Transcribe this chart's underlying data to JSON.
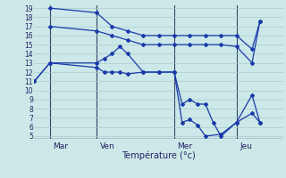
{
  "background_color": "#cce8e8",
  "grid_color": "#aacccc",
  "line_color": "#1a3aaa",
  "xlabel": "Température (°c)",
  "ylim": [
    5,
    19
  ],
  "yticks": [
    5,
    6,
    7,
    8,
    9,
    10,
    11,
    12,
    13,
    14,
    15,
    16,
    17,
    18,
    19
  ],
  "day_labels": [
    "Mar",
    "Ven",
    "Mer",
    "Jeu"
  ],
  "day_positions": [
    1,
    4,
    9,
    13
  ],
  "xlim": [
    0,
    16
  ],
  "lines": [
    {
      "x": [
        0,
        1,
        4,
        4.5,
        5,
        5.5,
        6,
        7,
        8,
        9,
        9.5,
        10,
        10.5,
        11,
        12,
        13,
        14,
        14.5
      ],
      "y": [
        11,
        13,
        12.5,
        12,
        12,
        12,
        11.8,
        12,
        12,
        12,
        6.5,
        6.8,
        6.2,
        5.0,
        5.2,
        6.5,
        7.5,
        6.5
      ]
    },
    {
      "x": [
        0,
        1,
        4,
        4.5,
        5,
        5.5,
        6,
        7,
        8,
        9,
        9.5,
        10,
        10.5,
        11,
        11.5,
        12,
        13,
        14,
        14.5
      ],
      "y": [
        11,
        13,
        13,
        13.5,
        14,
        14.8,
        14,
        12,
        12,
        12,
        8.5,
        9.0,
        8.5,
        8.5,
        6.5,
        5.0,
        6.5,
        9.5,
        6.5
      ]
    },
    {
      "x": [
        1,
        4,
        5,
        6,
        7,
        8,
        9,
        10,
        11,
        12,
        13,
        14,
        14.5
      ],
      "y": [
        17,
        16.5,
        16,
        15.5,
        15,
        15,
        15,
        15,
        15,
        15,
        14.8,
        13,
        17.5
      ]
    },
    {
      "x": [
        1,
        4,
        5,
        6,
        7,
        8,
        9,
        10,
        11,
        12,
        13,
        14,
        14.5
      ],
      "y": [
        19,
        18.5,
        17,
        16.5,
        16,
        16,
        16,
        16,
        16,
        16,
        16,
        14.5,
        17.5
      ]
    }
  ]
}
